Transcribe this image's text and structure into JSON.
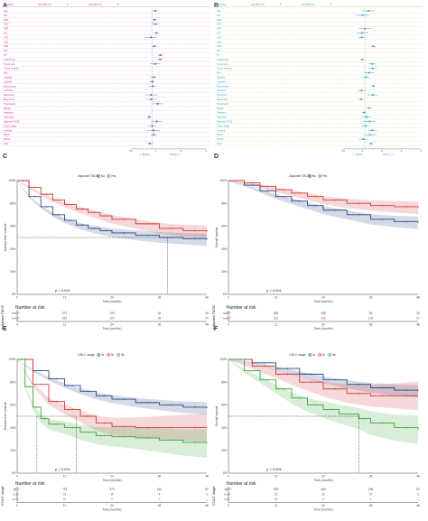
{
  "figure": {
    "panels": [
      {
        "letter": "A",
        "title": "",
        "kind": "forest"
      },
      {
        "letter": "B",
        "title": "",
        "kind": "forest"
      },
      {
        "letter": "C",
        "title": "Adjuvant TACE",
        "kind": "km"
      },
      {
        "letter": "D",
        "title": "Adjuvant TACE",
        "kind": "km"
      },
      {
        "letter": "E",
        "title": "CNLC stage",
        "kind": "km"
      },
      {
        "letter": "F",
        "title": "CNLC stage",
        "kind": "km"
      }
    ],
    "colors": {
      "magenta": "#c2338c",
      "cyan": "#29a9c9",
      "blue": "#2a4a86",
      "red": "#d43a3a",
      "green": "#3aa83a",
      "sep": "#d9a0cc",
      "sepB": "#e3d27a"
    }
  },
  "forest_a": {
    "headers": [
      "Variables",
      "HR (95% CI)",
      "P",
      "HR (95% CI)",
      "P"
    ],
    "rows": [
      "Age",
      "Sex",
      "HBV",
      "HCV",
      "AFP",
      "ALT",
      "AST",
      "ALB",
      "TBIL",
      "PLT",
      "PT",
      "Child-Pugh",
      "Tumor size",
      "Tumor number",
      "MVI",
      "Satellite",
      "Capsule",
      "Edmondson",
      "Cirrhosis",
      "Resection",
      "Blood loss",
      "Transfusion",
      "Margin",
      "Anatomic",
      "Approach",
      "Adjuvant TACE",
      "CNLC stage",
      "Antiviral",
      "BCLC",
      "ECOG",
      "ASA"
    ],
    "axis_ticks": [
      "0.5",
      "1",
      "2",
      "4"
    ],
    "favor_left": "<--Better",
    "favor_right": "Worse-->"
  },
  "forest_b": {
    "headers": [
      "Variables",
      "HR (95% CI)",
      "P",
      "HR (95% CI)",
      "P"
    ],
    "rows": [
      "Age",
      "Sex",
      "HBV",
      "HCV",
      "AFP",
      "ALT",
      "AST",
      "ALB",
      "TBIL",
      "PLT",
      "PT",
      "Child-Pugh",
      "Tumor size",
      "Tumor number",
      "MVI",
      "Satellite",
      "Capsule",
      "Edmondson",
      "Cirrhosis",
      "Resection",
      "Blood loss",
      "Transfusion",
      "Margin",
      "Anatomic",
      "Approach",
      "Adjuvant TACE",
      "CNLC stage",
      "Antiviral",
      "BCLC",
      "ECOG",
      "ASA"
    ],
    "axis_ticks": [
      "0.5",
      "1",
      "2",
      "4",
      "8"
    ],
    "favor_left": "<--Better",
    "favor_right": "Worse-->"
  },
  "chart_data": [
    {
      "type": "line",
      "panel": "C",
      "title": "Adjuvant TACE",
      "legend": [
        "No",
        "Yes"
      ],
      "xlabel": "Time (months)",
      "ylabel": "Disease-free survival",
      "x_ticks": [
        0,
        12,
        24,
        36,
        48
      ],
      "y_ticks": [
        "0%",
        "20%",
        "40%",
        "60%",
        "80%",
        "100%"
      ],
      "xlim": [
        0,
        48
      ],
      "ylim": [
        0,
        1
      ],
      "pvalue": "p < 0.001",
      "median_line": {
        "y": 0.5,
        "x": 38
      },
      "series": [
        {
          "name": "No",
          "x": [
            0,
            3,
            6,
            9,
            12,
            15,
            18,
            21,
            24,
            30,
            36,
            42,
            48
          ],
          "y": [
            1,
            0.86,
            0.77,
            0.7,
            0.65,
            0.61,
            0.58,
            0.56,
            0.54,
            0.52,
            0.5,
            0.49,
            0.48
          ]
        },
        {
          "name": "Yes",
          "x": [
            0,
            3,
            6,
            9,
            12,
            15,
            18,
            21,
            24,
            30,
            36,
            42,
            48
          ],
          "y": [
            1,
            0.94,
            0.88,
            0.83,
            0.79,
            0.75,
            0.72,
            0.69,
            0.66,
            0.62,
            0.58,
            0.56,
            0.55
          ]
        }
      ],
      "risk": {
        "title": "Number at risk",
        "table_label": "Adjuvant TACE",
        "rows": [
          {
            "name": "No",
            "values": [
              "627",
              "373",
              "193",
              "94",
              "34"
            ]
          },
          {
            "name": "Yes",
            "values": [
              "437",
              "258",
              "164",
              "95",
              "54"
            ]
          }
        ]
      }
    },
    {
      "type": "line",
      "panel": "D",
      "title": "Adjuvant TACE",
      "legend": [
        "No",
        "Yes"
      ],
      "xlabel": "Time (months)",
      "ylabel": "Overall survival",
      "x_ticks": [
        0,
        12,
        24,
        36,
        48
      ],
      "y_ticks": [
        "0%",
        "20%",
        "40%",
        "60%",
        "80%",
        "100%"
      ],
      "xlim": [
        0,
        48
      ],
      "ylim": [
        0,
        1
      ],
      "pvalue": "p < 0.001",
      "series": [
        {
          "name": "No",
          "x": [
            0,
            4,
            8,
            12,
            16,
            20,
            24,
            30,
            36,
            42,
            48
          ],
          "y": [
            1,
            0.96,
            0.91,
            0.86,
            0.82,
            0.78,
            0.74,
            0.7,
            0.66,
            0.64,
            0.63
          ]
        },
        {
          "name": "Yes",
          "x": [
            0,
            4,
            8,
            12,
            16,
            20,
            24,
            30,
            36,
            42,
            48
          ],
          "y": [
            1,
            0.98,
            0.95,
            0.92,
            0.89,
            0.86,
            0.83,
            0.8,
            0.78,
            0.77,
            0.76
          ]
        }
      ],
      "risk": {
        "title": "Number at risk",
        "table_label": "Adjuvant TACE",
        "rows": [
          {
            "name": "No",
            "values": [
              "627",
              "465",
              "258",
              "95",
              "34"
            ]
          },
          {
            "name": "Yes",
            "values": [
              "437",
              "323",
              "206",
              "106",
              "57"
            ]
          }
        ]
      }
    },
    {
      "type": "line",
      "panel": "E",
      "title": "CNLC stage",
      "legend": [
        "Ia",
        "Ib",
        "IIa"
      ],
      "xlabel": "Time (months)",
      "ylabel": "Disease-free survival",
      "x_ticks": [
        0,
        12,
        24,
        36,
        48
      ],
      "y_ticks": [
        "0%",
        "20%",
        "40%",
        "60%",
        "80%",
        "100%"
      ],
      "xlim": [
        0,
        48
      ],
      "ylim": [
        0,
        1
      ],
      "pvalue": "p < 0.001",
      "median_lines": [
        {
          "y": 0.5,
          "x": 5
        },
        {
          "y": 0.5,
          "x": 15
        }
      ],
      "series": [
        {
          "name": "Ia",
          "x": [
            0,
            4,
            8,
            12,
            16,
            20,
            24,
            30,
            36,
            42,
            48
          ],
          "y": [
            1,
            0.9,
            0.83,
            0.77,
            0.72,
            0.68,
            0.65,
            0.62,
            0.6,
            0.58,
            0.57
          ]
        },
        {
          "name": "Ib",
          "x": [
            0,
            4,
            8,
            12,
            16,
            20,
            24,
            30,
            36,
            42,
            48
          ],
          "y": [
            1,
            0.78,
            0.63,
            0.56,
            0.5,
            0.44,
            0.41,
            0.4,
            0.4,
            0.4,
            0.4
          ]
        },
        {
          "name": "IIa",
          "x": [
            0,
            2,
            4,
            6,
            8,
            12,
            16,
            20,
            24,
            30,
            36,
            42,
            48
          ],
          "y": [
            1,
            0.76,
            0.58,
            0.48,
            0.43,
            0.4,
            0.36,
            0.33,
            0.32,
            0.31,
            0.29,
            0.27,
            0.26
          ]
        }
      ],
      "risk": {
        "title": "Number at risk",
        "table_label": "CNLC stage",
        "rows": [
          {
            "name": "Ia",
            "values": [
              "977",
              "723",
              "373",
              "145",
              "50"
            ]
          },
          {
            "name": "Ib",
            "values": [
              "30",
              "23",
              "15",
              "8",
              "3"
            ]
          },
          {
            "name": "IIa",
            "values": [
              "52",
              "20",
              "9",
              "3",
              "1"
            ]
          }
        ]
      }
    },
    {
      "type": "line",
      "panel": "F",
      "title": "CNLC stage",
      "legend": [
        "Ia",
        "Ib",
        "IIa"
      ],
      "xlabel": "Time (months)",
      "ylabel": "Overall survival",
      "x_ticks": [
        0,
        12,
        24,
        36,
        48
      ],
      "y_ticks": [
        "0%",
        "20%",
        "40%",
        "60%",
        "80%",
        "100%"
      ],
      "xlim": [
        0,
        48
      ],
      "ylim": [
        0,
        1
      ],
      "pvalue": "p < 0.001",
      "median_line": {
        "y": 0.5,
        "x": 33
      },
      "series": [
        {
          "name": "Ia",
          "x": [
            0,
            6,
            12,
            18,
            24,
            30,
            36,
            42,
            48
          ],
          "y": [
            1,
            0.97,
            0.92,
            0.87,
            0.82,
            0.78,
            0.75,
            0.73,
            0.72
          ]
        },
        {
          "name": "Ib",
          "x": [
            0,
            6,
            12,
            18,
            24,
            30,
            36,
            42,
            48
          ],
          "y": [
            1,
            0.94,
            0.87,
            0.8,
            0.74,
            0.7,
            0.68,
            0.68,
            0.68
          ]
        },
        {
          "name": "IIa",
          "x": [
            0,
            4,
            8,
            12,
            16,
            20,
            24,
            28,
            33,
            36,
            42,
            48
          ],
          "y": [
            1,
            0.9,
            0.82,
            0.74,
            0.66,
            0.6,
            0.56,
            0.52,
            0.48,
            0.44,
            0.4,
            0.38
          ]
        }
      ],
      "risk": {
        "title": "Number at risk",
        "table_label": "CNLC stage",
        "rows": [
          {
            "name": "Ia",
            "values": [
              "1077",
              "875",
              "469",
              "196",
              "82"
            ]
          },
          {
            "name": "Ib",
            "values": [
              "34",
              "30",
              "20",
              "10",
              "3"
            ]
          },
          {
            "name": "IIa",
            "values": [
              "21",
              "18",
              "12",
              "4",
              "1"
            ]
          }
        ]
      }
    }
  ]
}
